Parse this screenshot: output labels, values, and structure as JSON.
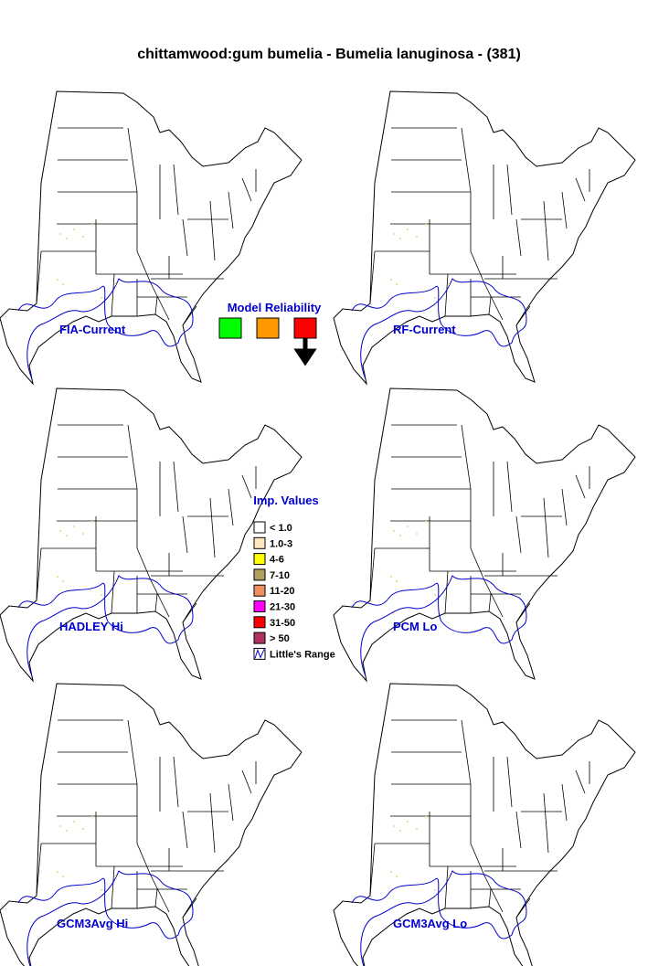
{
  "title": "chittamwood:gum bumelia - Bumelia lanuginosa - (381)",
  "panels": [
    "FIA-Current",
    "RF-Current",
    "HADLEY Hi",
    "PCM Lo",
    "GCM3Avg Hi",
    "GCM3Avg Lo"
  ],
  "model_reliability": {
    "label": "Model Reliability",
    "colors": [
      "#00ff00",
      "#ff9900",
      "#ff0000"
    ]
  },
  "legend": {
    "title": "Imp. Values",
    "items": [
      {
        "label": "< 1.0",
        "color": "#ffffff"
      },
      {
        "label": "1.0-3",
        "color": "#ffe8c0"
      },
      {
        "label": "4-6",
        "color": "#ffff00"
      },
      {
        "label": "7-10",
        "color": "#b0a060"
      },
      {
        "label": "11-20",
        "color": "#f09060"
      },
      {
        "label": "21-30",
        "color": "#ff00ff"
      },
      {
        "label": "31-50",
        "color": "#ff0000"
      },
      {
        "label": "> 50",
        "color": "#b03060"
      }
    ],
    "range_label": "Little's Range"
  }
}
